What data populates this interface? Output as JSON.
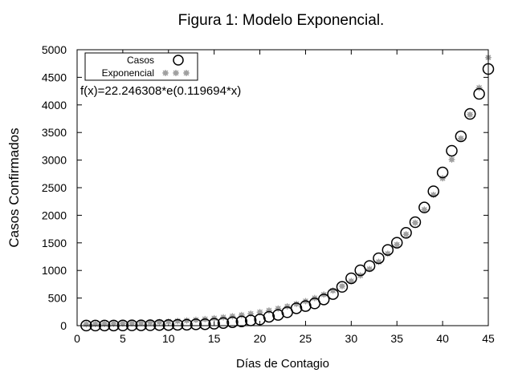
{
  "chart_data": {
    "type": "scatter",
    "title": "Figura 1: Modelo Exponencial.",
    "xlabel": "Días de Contagio",
    "ylabel": "Casos Confirmados",
    "xlim": [
      0,
      45
    ],
    "ylim": [
      0,
      5000
    ],
    "xticks": [
      0,
      5,
      10,
      15,
      20,
      25,
      30,
      35,
      40,
      45
    ],
    "yticks": [
      0,
      500,
      1000,
      1500,
      2000,
      2500,
      3000,
      3500,
      4000,
      4500,
      5000
    ],
    "grid": false,
    "legend_position": "top-left",
    "annotation": "f(x)=22.246308*e(0.119694*x)",
    "fit": {
      "a": 22.246308,
      "b": 0.119694
    },
    "series": [
      {
        "name": "Casos",
        "marker": "open-circle",
        "color": "#000000",
        "x": [
          1,
          2,
          3,
          4,
          5,
          6,
          7,
          8,
          9,
          10,
          11,
          12,
          13,
          14,
          15,
          16,
          17,
          18,
          19,
          20,
          21,
          22,
          23,
          24,
          25,
          26,
          27,
          28,
          29,
          30,
          31,
          32,
          33,
          34,
          35,
          36,
          37,
          38,
          39,
          40,
          41,
          42,
          43,
          44,
          45
        ],
        "y": [
          1,
          1,
          2,
          2,
          3,
          5,
          6,
          7,
          11,
          11,
          15,
          17,
          24,
          26,
          35,
          48,
          62,
          76,
          95,
          112,
          160,
          195,
          243,
          315,
          355,
          403,
          475,
          573,
          703,
          858,
          1003,
          1081,
          1221,
          1372,
          1503,
          1682,
          1875,
          2142,
          2435,
          2776,
          3169,
          3430,
          3837,
          4200,
          4651
        ]
      },
      {
        "name": "Exponencial",
        "marker": "filled-star",
        "color": "#a0a0a0",
        "x": [
          1,
          2,
          3,
          4,
          5,
          6,
          7,
          8,
          9,
          10,
          11,
          12,
          13,
          14,
          15,
          16,
          17,
          18,
          19,
          20,
          21,
          22,
          23,
          24,
          25,
          26,
          27,
          28,
          29,
          30,
          31,
          32,
          33,
          34,
          35,
          36,
          37,
          38,
          39,
          40,
          41,
          42,
          43,
          44,
          45
        ]
      }
    ]
  }
}
